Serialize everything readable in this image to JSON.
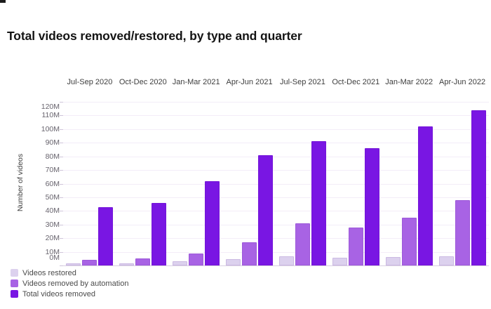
{
  "decorations": {
    "corner_mark_color": "#1c1c1c"
  },
  "chart_data": {
    "type": "bar",
    "title": "Total videos removed/restored, by type and quarter",
    "ylabel": "Number of videos",
    "values_unit": "millions of videos",
    "categories": [
      "Jul-Sep 2020",
      "Oct-Dec 2020",
      "Jan-Mar 2021",
      "Apr-Jun 2021",
      "Jul-Sep 2021",
      "Oct-Dec 2021",
      "Jan-Mar 2022",
      "Apr-Jun 2022"
    ],
    "series": [
      {
        "name": "Videos restored",
        "color": "#dcd1ee",
        "values": [
          1.5,
          1.5,
          3,
          4.5,
          6.5,
          5.5,
          6,
          6.5
        ]
      },
      {
        "name": "Videos removed by automation",
        "color": "#a863e4",
        "values": [
          4,
          5,
          9,
          17,
          31,
          28,
          35,
          48
        ]
      },
      {
        "name": "Total videos removed",
        "color": "#7916e3",
        "values": [
          43,
          46,
          62,
          81,
          91,
          86,
          102,
          114
        ]
      }
    ],
    "ylim": [
      0,
      120
    ],
    "ytick_step": 10,
    "yticks": [
      "0M",
      "10M",
      "20M",
      "30M",
      "40M",
      "50M",
      "60M",
      "70M",
      "80M",
      "90M",
      "100M",
      "110M",
      "120M"
    ],
    "grid": true,
    "legend_position": "bottom-left",
    "category_labels_position": "top"
  }
}
